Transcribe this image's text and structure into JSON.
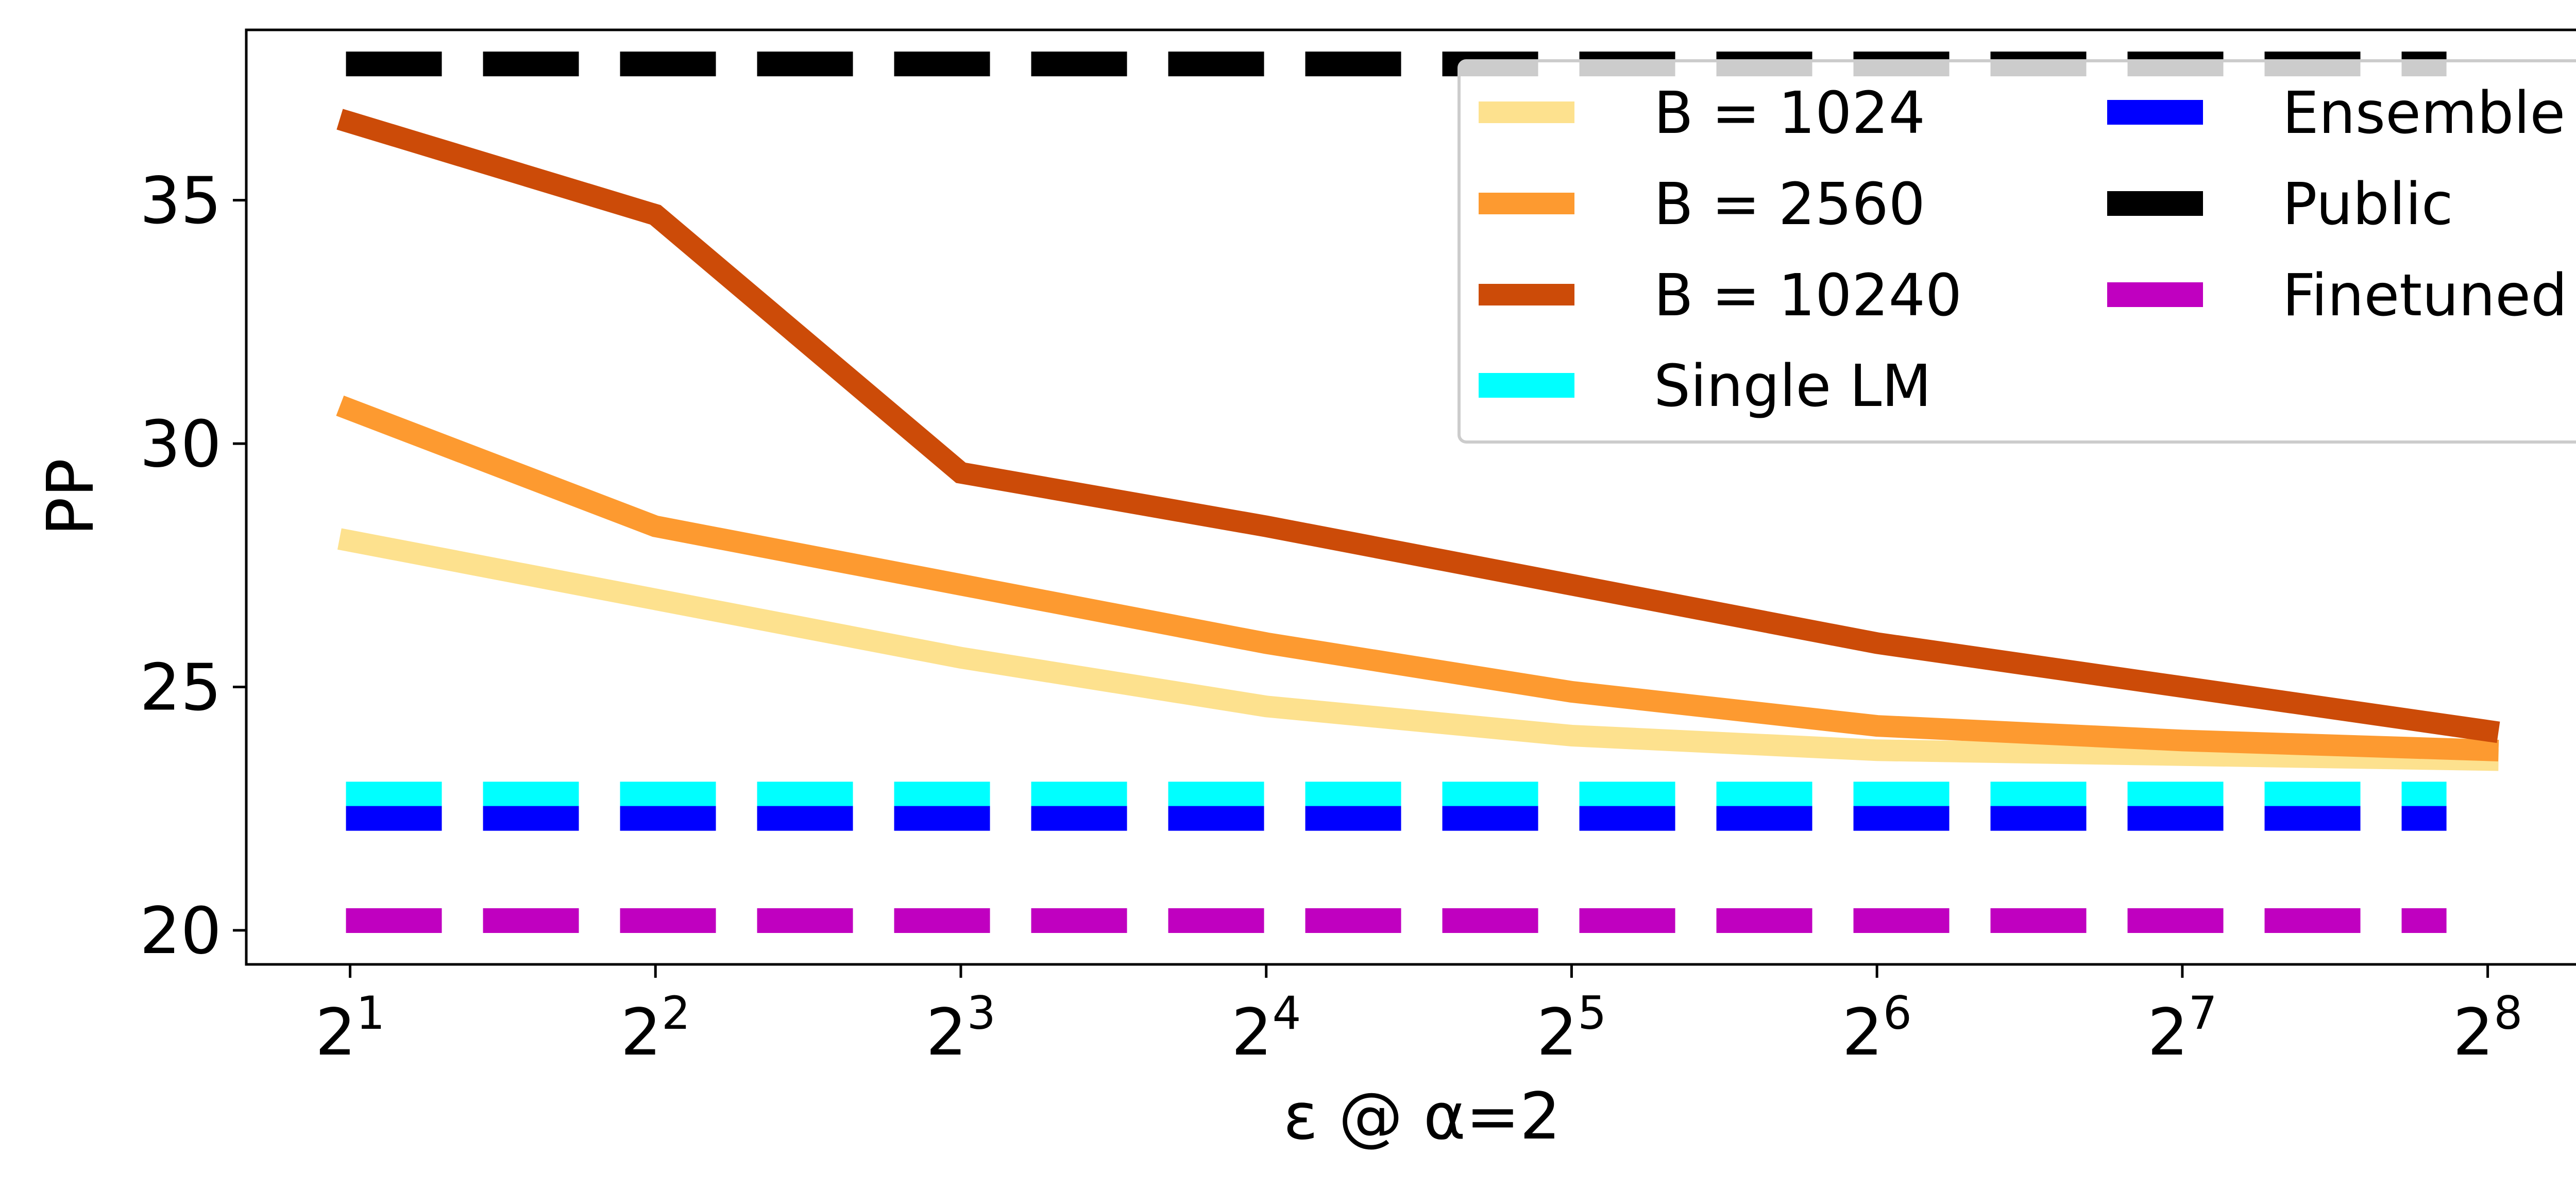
{
  "chart_data": {
    "type": "line",
    "title": "",
    "xlabel": "ε @ α=2",
    "ylabel": "PP",
    "x": [
      1,
      2,
      3,
      4,
      5,
      6,
      7,
      8
    ],
    "x_tick_labels": [
      {
        "base": "2",
        "exp": "1"
      },
      {
        "base": "2",
        "exp": "2"
      },
      {
        "base": "2",
        "exp": "3"
      },
      {
        "base": "2",
        "exp": "4"
      },
      {
        "base": "2",
        "exp": "5"
      },
      {
        "base": "2",
        "exp": "6"
      },
      {
        "base": "2",
        "exp": "7"
      },
      {
        "base": "2",
        "exp": "8"
      }
    ],
    "x_scale": "log2",
    "xlim": [
      0.66,
      8.36
    ],
    "y_ticks": [
      20,
      25,
      30,
      35
    ],
    "ylim": [
      19.3,
      38.5
    ],
    "grid": false,
    "legend_position": "top-right",
    "legend_columns": 2,
    "series": [
      {
        "name": "B = 1024",
        "style": "solid",
        "color": "#fde18e",
        "values": [
          28.0,
          26.8,
          25.6,
          24.6,
          24.0,
          23.7,
          23.6,
          23.5
        ]
      },
      {
        "name": "B = 2560",
        "style": "solid",
        "color": "#fd9a30",
        "values": [
          30.7,
          28.3,
          27.1,
          25.9,
          24.9,
          24.2,
          23.9,
          23.7
        ]
      },
      {
        "name": "B = 10240",
        "style": "solid",
        "color": "#cc4b08",
        "values": [
          36.6,
          34.7,
          29.4,
          28.3,
          27.1,
          25.9,
          25.0,
          24.1
        ]
      },
      {
        "name": "Single LM",
        "style": "dashed",
        "color": "#00ffff",
        "constant": 22.8
      },
      {
        "name": "Ensemble",
        "style": "dashed",
        "color": "#0000ff",
        "constant": 22.3
      },
      {
        "name": "Public",
        "style": "dashed",
        "color": "#000000",
        "constant": 37.8
      },
      {
        "name": "Finetuned",
        "style": "dashed",
        "color": "#c000c0",
        "constant": 20.2
      }
    ],
    "legend_order": [
      "B = 1024",
      "B = 2560",
      "B = 10240",
      "Single LM",
      "Ensemble",
      "Public",
      "Finetuned"
    ]
  }
}
